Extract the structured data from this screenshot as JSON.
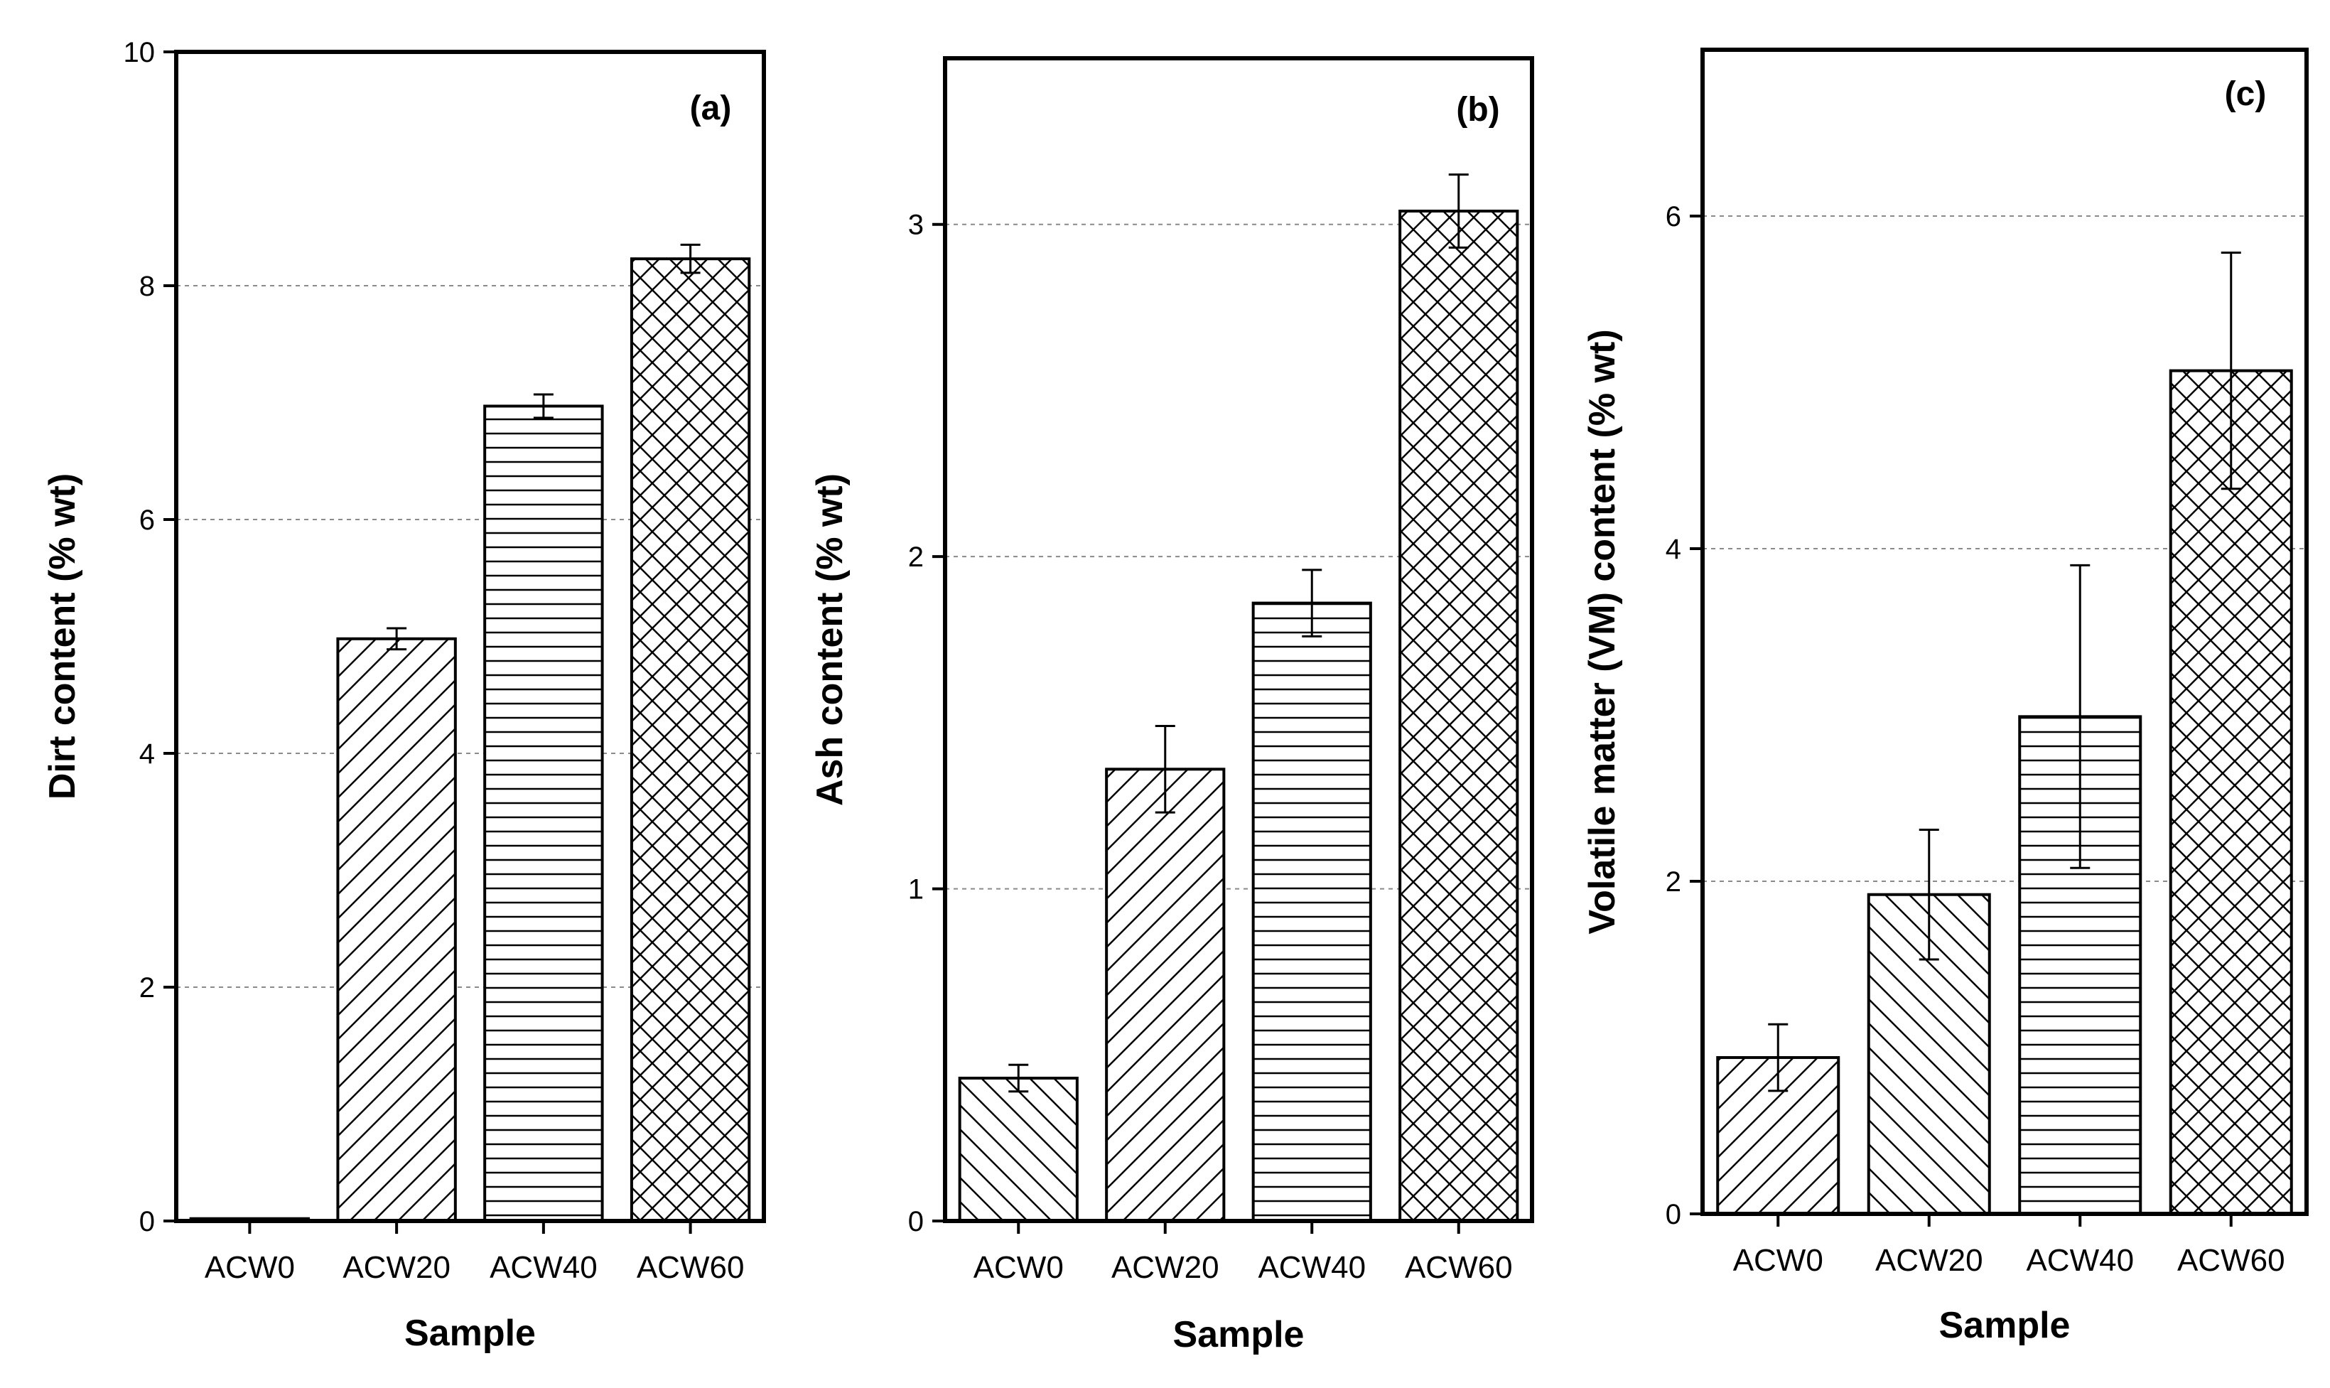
{
  "chart_data": [
    {
      "type": "bar",
      "panel_label": "(a)",
      "categories": [
        "ACW0",
        "ACW20",
        "ACW40",
        "ACW60"
      ],
      "values": [
        0.02,
        4.98,
        6.97,
        8.23
      ],
      "errors": [
        0.0,
        0.09,
        0.1,
        0.12
      ],
      "patterns": [
        "diag-up",
        "diag-up",
        "horizontal",
        "crosshatch"
      ],
      "xlabel": "Sample",
      "ylabel": "Dirt content (% wt)",
      "ylim": [
        0,
        10
      ],
      "yticks": [
        0,
        2,
        4,
        6,
        8,
        10
      ],
      "grid": true
    },
    {
      "type": "bar",
      "panel_label": "(b)",
      "categories": [
        "ACW0",
        "ACW20",
        "ACW40",
        "ACW60"
      ],
      "values": [
        0.43,
        1.36,
        1.86,
        3.04
      ],
      "errors": [
        0.04,
        0.13,
        0.1,
        0.11
      ],
      "patterns": [
        "diag-down",
        "diag-up",
        "horizontal",
        "crosshatch"
      ],
      "xlabel": "Sample",
      "ylabel": "Ash content (% wt)",
      "ylim": [
        0,
        3.5
      ],
      "yticks": [
        0,
        1,
        2,
        3
      ],
      "grid": true
    },
    {
      "type": "bar",
      "panel_label": "(c)",
      "categories": [
        "ACW0",
        "ACW20",
        "ACW40",
        "ACW60"
      ],
      "values": [
        0.94,
        1.92,
        2.99,
        5.07
      ],
      "errors": [
        0.2,
        0.39,
        0.91,
        0.71
      ],
      "patterns": [
        "diag-up",
        "diag-down",
        "horizontal",
        "crosshatch"
      ],
      "xlabel": "Sample",
      "ylabel": "Volatile matter (VM) content (% wt)",
      "ylim": [
        0,
        7
      ],
      "yticks": [
        0,
        2,
        4,
        6
      ],
      "grid": true
    }
  ]
}
